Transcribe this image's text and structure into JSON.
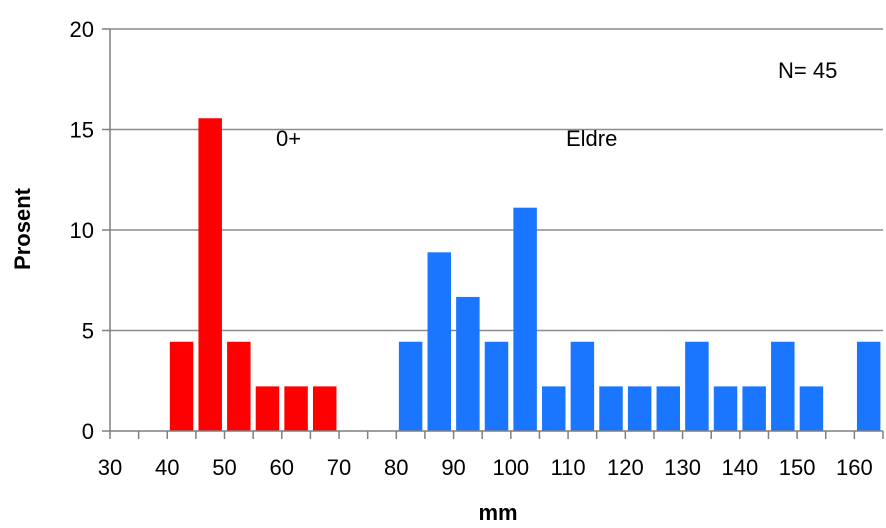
{
  "chart_data": {
    "type": "bar",
    "xlabel": "mm",
    "ylabel": "Prosent",
    "ylim": [
      0,
      20
    ],
    "yticks": [
      0,
      5,
      10,
      15,
      20
    ],
    "xtick_labels": [
      "30",
      "40",
      "50",
      "60",
      "70",
      "80",
      "90",
      "100",
      "110",
      "120",
      "130",
      "140",
      "150",
      "160"
    ],
    "grid": true,
    "bin_width": 5,
    "x_start": 30,
    "x_end": 165,
    "series": [
      {
        "name": "0+",
        "color": "#ff0000",
        "x": [
          45,
          50,
          55,
          60,
          65,
          70
        ],
        "values": [
          4.44,
          15.56,
          4.44,
          2.22,
          2.22,
          2.22
        ]
      },
      {
        "name": "Eldre",
        "color": "#1a75ff",
        "x": [
          85,
          90,
          95,
          100,
          105,
          110,
          115,
          120,
          125,
          130,
          135,
          140,
          145,
          150,
          155,
          165
        ],
        "values": [
          4.44,
          8.89,
          6.67,
          4.44,
          11.11,
          2.22,
          4.44,
          2.22,
          2.22,
          2.22,
          4.44,
          2.22,
          2.22,
          4.44,
          2.22,
          4.44
        ]
      }
    ],
    "annotations": [
      {
        "text": "0+"
      },
      {
        "text": "Eldre"
      },
      {
        "text": "N= 45"
      }
    ]
  }
}
